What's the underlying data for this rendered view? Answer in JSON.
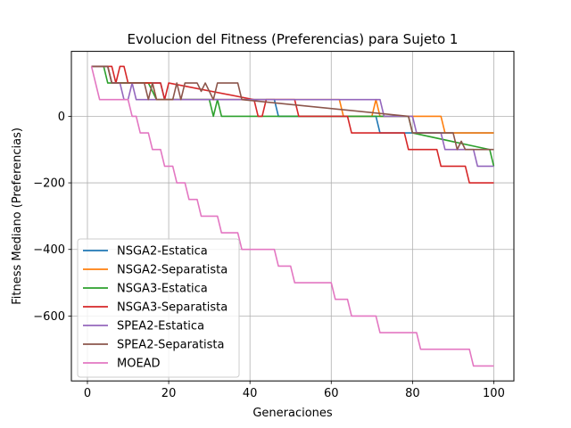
{
  "chart_data": {
    "type": "line",
    "title": "Evolucion del Fitness (Preferencias) para Sujeto 1",
    "xlabel": "Generaciones",
    "ylabel": "Fitness Mediano (Preferencias)",
    "xlim": [
      -3.95,
      104.95
    ],
    "ylim": [
      -795,
      195
    ],
    "xticks": [
      0,
      20,
      40,
      60,
      80,
      100
    ],
    "yticks": [
      0,
      -200,
      -400,
      -600
    ],
    "grid": true,
    "legend_position": "lower-left",
    "series": [
      {
        "name": "NSGA2-Estatica",
        "color": "#1f77b4",
        "x": [
          1,
          5,
          6,
          10,
          11,
          18,
          19,
          46,
          47,
          71,
          72,
          100
        ],
        "y": [
          150,
          150,
          100,
          100,
          100,
          100,
          50,
          50,
          0,
          0,
          -50,
          -50
        ]
      },
      {
        "name": "NSGA2-Separatista",
        "color": "#ff7f0e",
        "x": [
          1,
          5,
          6,
          10,
          11,
          16,
          17,
          62,
          63,
          70,
          71,
          72,
          87,
          88,
          100
        ],
        "y": [
          150,
          150,
          100,
          100,
          100,
          100,
          50,
          50,
          0,
          0,
          50,
          0,
          0,
          -50,
          -50
        ]
      },
      {
        "name": "NSGA3-Estatica",
        "color": "#2ca02c",
        "x": [
          1,
          4,
          5,
          15,
          16,
          17,
          30,
          31,
          32,
          33,
          79,
          80,
          99,
          100
        ],
        "y": [
          150,
          150,
          100,
          100,
          75,
          50,
          50,
          0,
          50,
          0,
          0,
          -50,
          -100,
          -150
        ]
      },
      {
        "name": "NSGA3-Separatista",
        "color": "#d62728",
        "x": [
          1,
          6,
          7,
          8,
          9,
          10,
          18,
          19,
          20,
          41,
          42,
          43,
          44,
          51,
          52,
          64,
          65,
          78,
          79,
          86,
          87,
          93,
          94,
          100
        ],
        "y": [
          150,
          150,
          100,
          150,
          150,
          100,
          100,
          50,
          100,
          50,
          0,
          0,
          50,
          50,
          0,
          0,
          -50,
          -50,
          -100,
          -100,
          -150,
          -150,
          -200,
          -200
        ]
      },
      {
        "name": "SPEA2-Estatica",
        "color": "#9467bd",
        "x": [
          1,
          5,
          6,
          8,
          9,
          10,
          11,
          12,
          37,
          38,
          71,
          72,
          73,
          80,
          81,
          87,
          88,
          95,
          96,
          100
        ],
        "y": [
          150,
          150,
          100,
          100,
          50,
          50,
          100,
          50,
          50,
          50,
          50,
          50,
          0,
          0,
          -50,
          -50,
          -100,
          -100,
          -150,
          -150
        ],
        "note_series_marks": ""
      },
      {
        "name": "SPEA2-Separatista",
        "color": "#8c564b",
        "x": [
          1,
          5,
          6,
          14,
          15,
          16,
          17,
          21,
          22,
          23,
          24,
          27,
          28,
          29,
          31,
          32,
          33,
          37,
          38,
          79,
          80,
          84,
          85,
          90,
          91,
          92,
          93,
          100
        ],
        "y": [
          150,
          150,
          100,
          100,
          50,
          100,
          50,
          50,
          100,
          50,
          100,
          100,
          75,
          100,
          50,
          100,
          100,
          100,
          50,
          0,
          -50,
          -50,
          -50,
          -50,
          -100,
          -75,
          -100,
          -100
        ]
      },
      {
        "name": "MOEAD",
        "color": "#e377c2",
        "x": [
          1,
          2,
          3,
          10,
          11,
          12,
          13,
          15,
          16,
          18,
          19,
          21,
          22,
          24,
          25,
          27,
          28,
          31,
          32,
          33,
          34,
          37,
          38,
          39,
          40,
          46,
          47,
          50,
          51,
          54,
          55,
          60,
          61,
          64,
          65,
          71,
          72,
          81,
          82,
          89,
          90,
          94,
          95,
          100
        ],
        "y": [
          150,
          100,
          50,
          50,
          0,
          0,
          -50,
          -50,
          -100,
          -100,
          -150,
          -150,
          -200,
          -200,
          -250,
          -250,
          -300,
          -300,
          -300,
          -350,
          -350,
          -350,
          -400,
          -400,
          -400,
          -400,
          -450,
          -450,
          -500,
          -500,
          -500,
          -500,
          -550,
          -550,
          -600,
          -600,
          -650,
          -650,
          -700,
          -700,
          -700,
          -700,
          -750,
          -750
        ]
      }
    ]
  }
}
